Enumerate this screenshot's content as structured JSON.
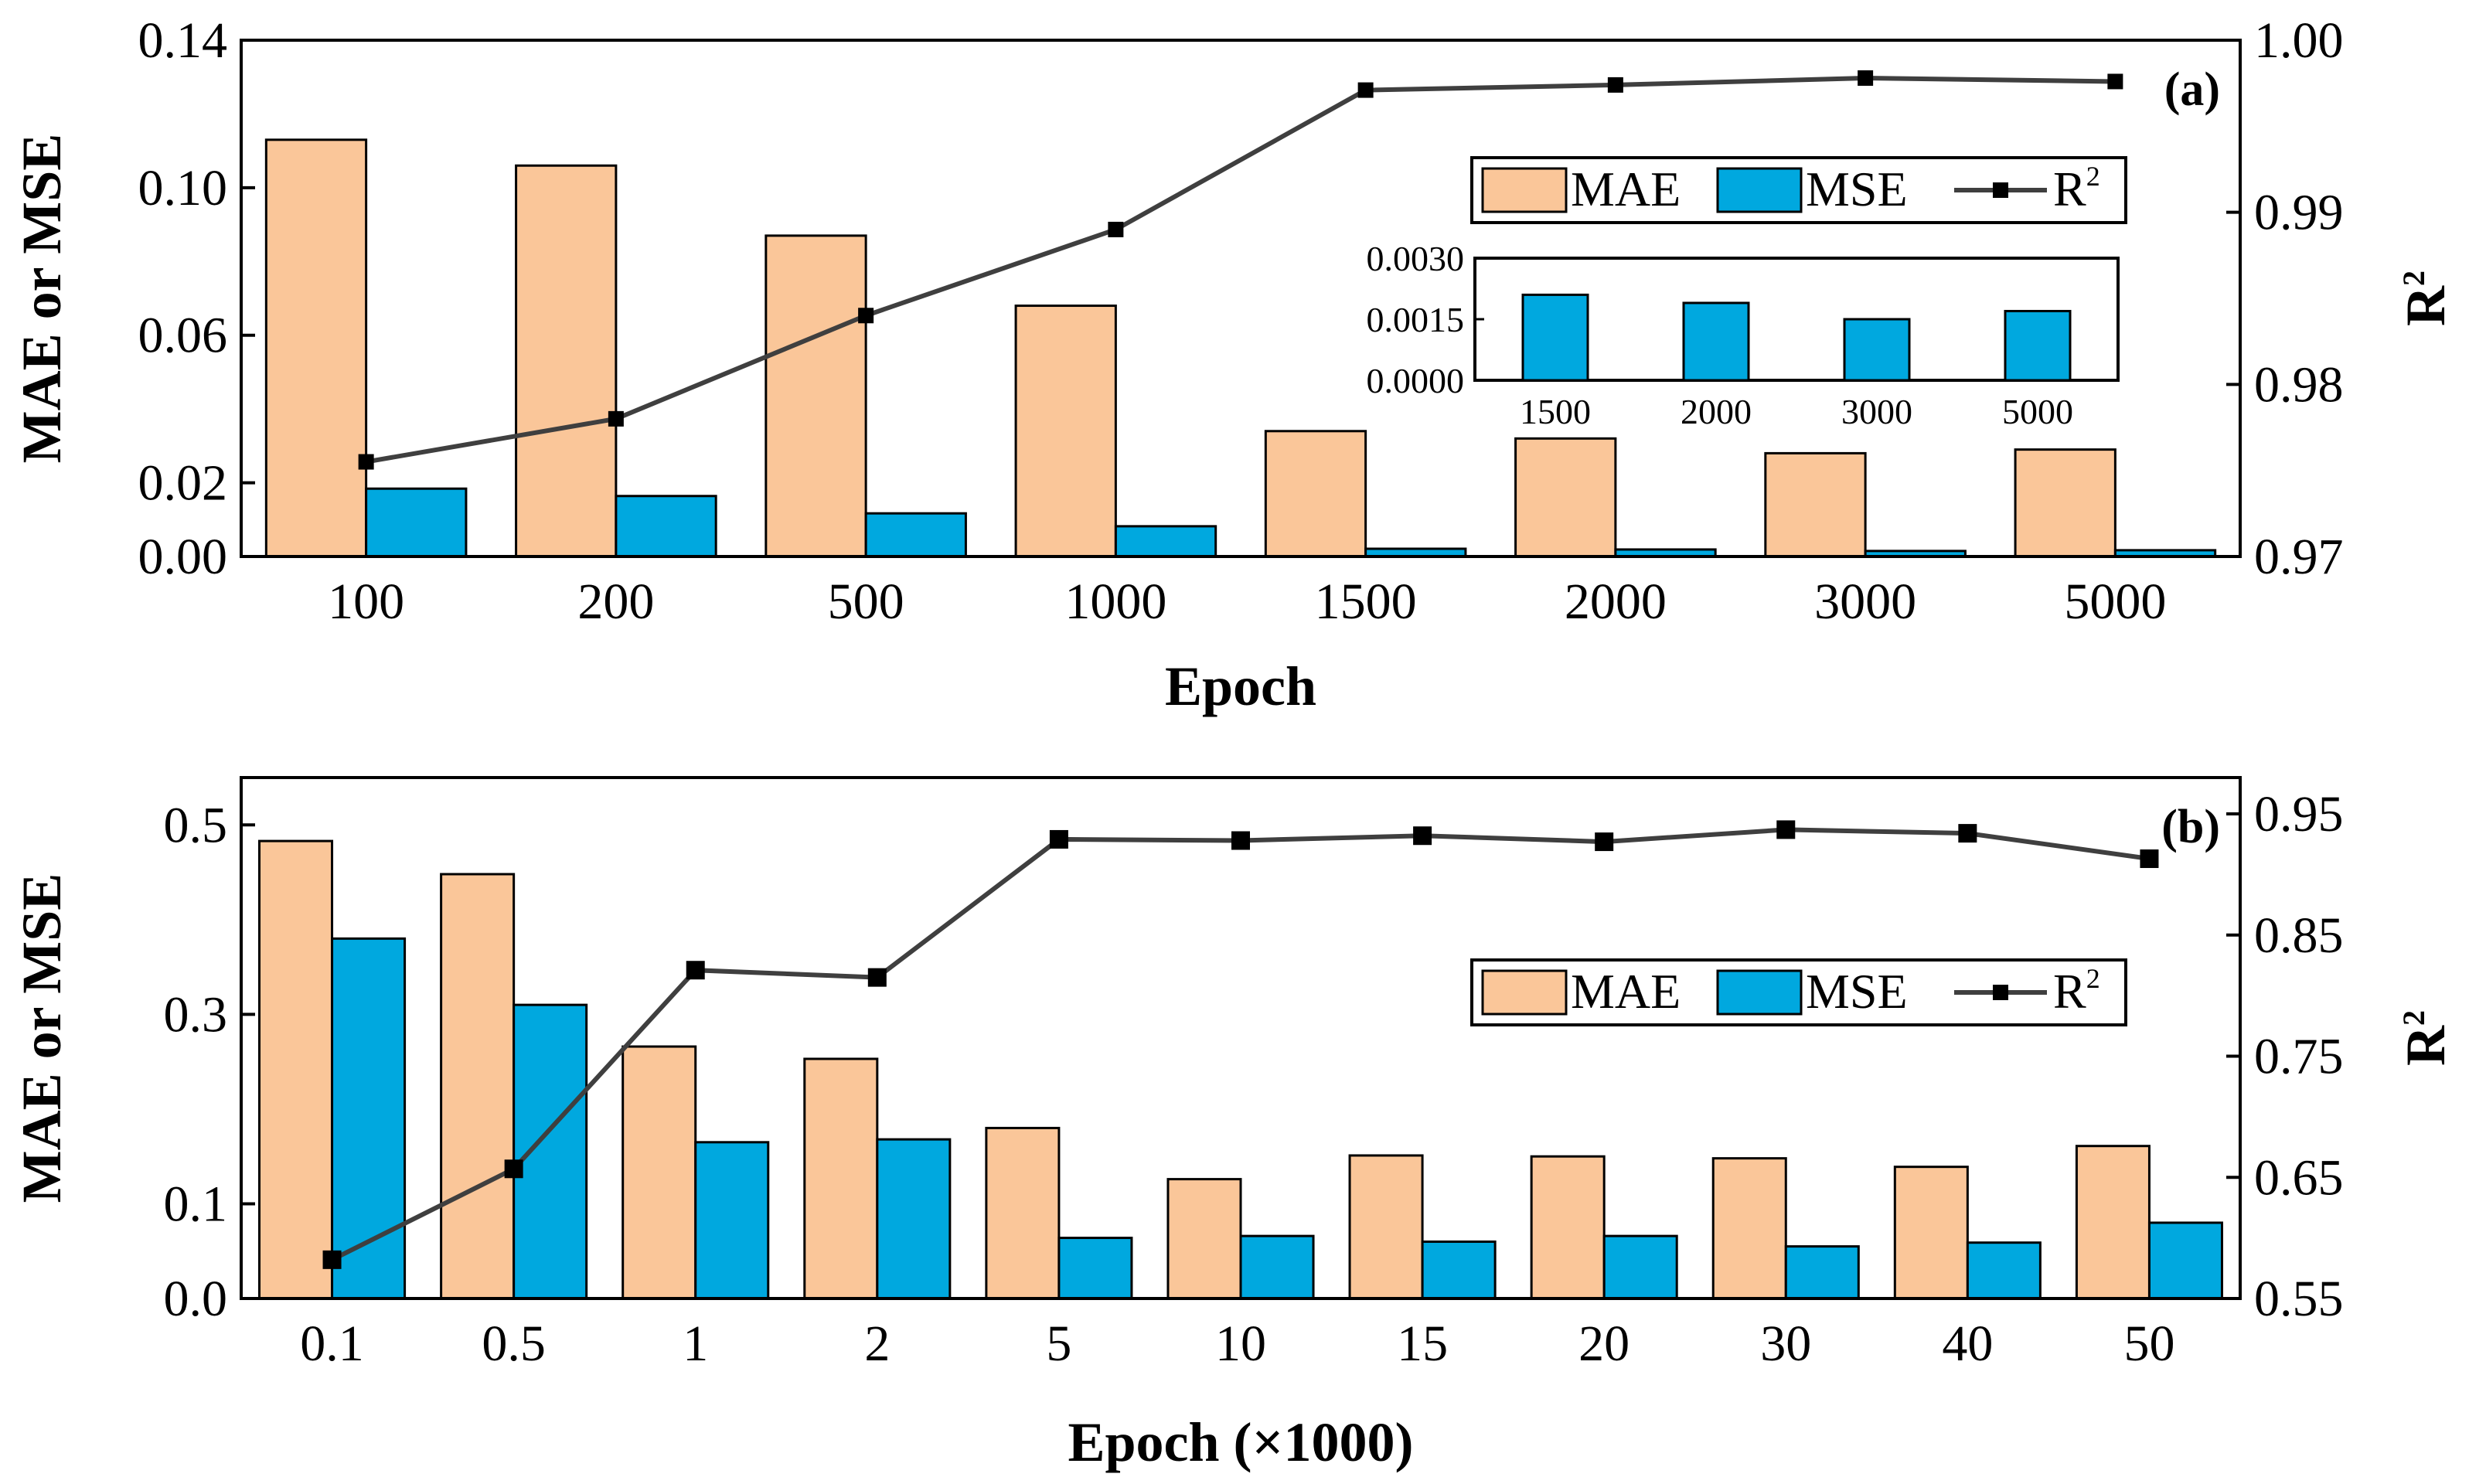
{
  "colors": {
    "mae": "#FAC699",
    "mse": "#00A8DF",
    "r2": "#3F3F3F",
    "axis": "#000000"
  },
  "chart_data": [
    {
      "type": "bar",
      "panel_label": "(a)",
      "title": "",
      "categories": [
        "100",
        "200",
        "500",
        "1000",
        "1500",
        "2000",
        "3000",
        "5000"
      ],
      "xlabel": "Epoch",
      "ylabel": "MAE or MSE",
      "y2label": "R",
      "y2label_sup": "2",
      "ylim": [
        0,
        0.14
      ],
      "yticks": [
        0,
        0.02,
        0.06,
        0.1,
        0.14
      ],
      "ytick_labels": [
        "0.00",
        "0.02",
        "0.06",
        "0.10",
        "0.14"
      ],
      "y2lim": [
        0.97,
        1.0
      ],
      "y2ticks": [
        0.97,
        0.98,
        0.99,
        1.0
      ],
      "y2tick_labels": [
        "0.97",
        "0.98",
        "0.99",
        "1.00"
      ],
      "series": [
        {
          "name": "MAE",
          "kind": "bar",
          "axis": "left",
          "values": [
            0.113,
            0.106,
            0.087,
            0.068,
            0.034,
            0.032,
            0.028,
            0.029
          ]
        },
        {
          "name": "MSE",
          "kind": "bar",
          "axis": "left",
          "values": [
            0.0184,
            0.0164,
            0.0117,
            0.0082,
            0.0021,
            0.0019,
            0.0015,
            0.0017
          ]
        },
        {
          "name": "R",
          "name_sup": "2",
          "kind": "line",
          "axis": "right",
          "values": [
            0.9755,
            0.978,
            0.984,
            0.989,
            0.9971,
            0.9974,
            0.9978,
            0.9976
          ]
        }
      ],
      "legend": {
        "location": "upper-right",
        "entries": [
          "MAE",
          "MSE",
          "R"
        ],
        "r2_sup": "2"
      },
      "inset": {
        "type": "bar",
        "series_name": "MSE",
        "categories": [
          "1500",
          "2000",
          "3000",
          "5000"
        ],
        "values": [
          0.0021,
          0.0019,
          0.0015,
          0.0017
        ],
        "ylim": [
          0,
          0.003
        ],
        "yticks": [
          0,
          0.0015,
          0.003
        ],
        "ytick_labels": [
          "0.0000",
          "0.0015",
          "0.0030"
        ]
      }
    },
    {
      "type": "bar",
      "panel_label": "(b)",
      "title": "",
      "categories": [
        "0.1",
        "0.5",
        "1",
        "2",
        "5",
        "10",
        "15",
        "20",
        "30",
        "40",
        "50"
      ],
      "xlabel": "Epoch (×1000)",
      "ylabel": "MAE or MSE",
      "y2label": "R",
      "y2label_sup": "2",
      "ylim": [
        0,
        0.55
      ],
      "yticks": [
        0,
        0.1,
        0.3,
        0.5
      ],
      "ytick_labels": [
        "0.0",
        "0.1",
        "0.3",
        "0.5"
      ],
      "y2lim": [
        0.55,
        0.98
      ],
      "y2ticks": [
        0.55,
        0.65,
        0.75,
        0.85,
        0.95
      ],
      "y2tick_labels": [
        "0.55",
        "0.65",
        "0.75",
        "0.85",
        "0.95"
      ],
      "series": [
        {
          "name": "MAE",
          "kind": "bar",
          "axis": "left",
          "values": [
            0.483,
            0.448,
            0.266,
            0.253,
            0.18,
            0.126,
            0.151,
            0.15,
            0.148,
            0.139,
            0.161
          ]
        },
        {
          "name": "MSE",
          "kind": "bar",
          "axis": "left",
          "values": [
            0.38,
            0.31,
            0.165,
            0.168,
            0.064,
            0.066,
            0.06,
            0.066,
            0.055,
            0.059,
            0.08
          ]
        },
        {
          "name": "R",
          "name_sup": "2",
          "kind": "line",
          "axis": "right",
          "values": [
            0.582,
            0.657,
            0.821,
            0.815,
            0.929,
            0.928,
            0.932,
            0.927,
            0.937,
            0.934,
            0.913
          ]
        }
      ],
      "legend": {
        "location": "upper-right",
        "entries": [
          "MAE",
          "MSE",
          "R"
        ],
        "r2_sup": "2"
      }
    }
  ]
}
